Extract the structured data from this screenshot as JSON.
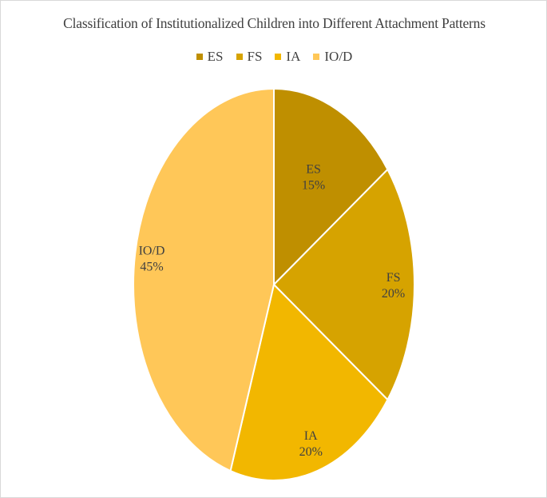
{
  "chart_data": {
    "type": "pie",
    "title": "Classification of Institutionalized Children into Different Attachment Patterns",
    "categories": [
      "ES",
      "FS",
      "IA",
      "IO/D"
    ],
    "values": [
      15,
      20,
      20,
      45
    ],
    "value_labels": [
      "15%",
      "20%",
      "20%",
      "45%"
    ],
    "colors": [
      "#bf8f00",
      "#d6a300",
      "#f2b700",
      "#ffc758"
    ],
    "legend_position": "top",
    "data_labels": "category and percentage",
    "start_angle": "12 o'clock",
    "direction": "clockwise"
  }
}
